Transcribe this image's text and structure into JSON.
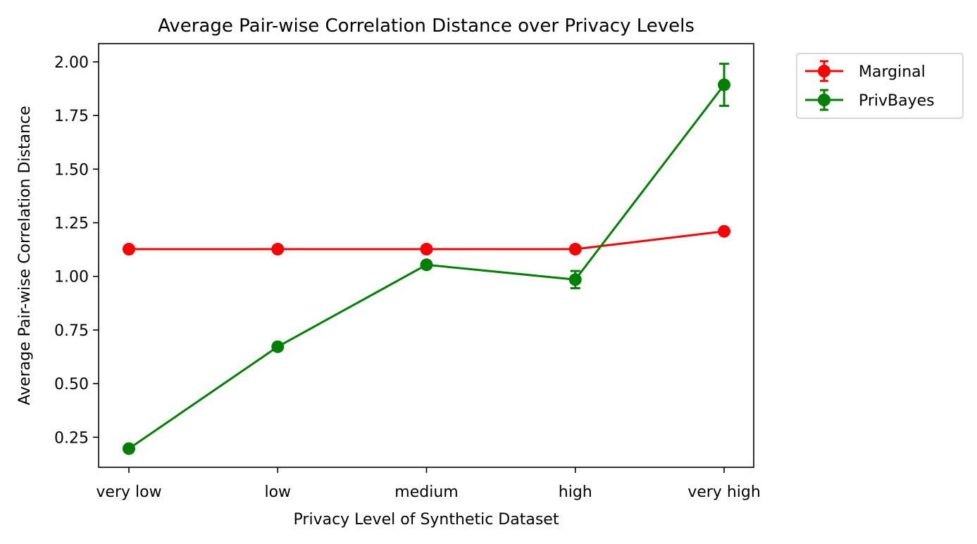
{
  "chart_data": {
    "type": "line",
    "title": "Average Pair-wise Correlation Distance over Privacy Levels",
    "xlabel": "Privacy Level of Synthetic Dataset",
    "ylabel": "Average Pair-wise Correlation Distance",
    "categories": [
      "very low",
      "low",
      "medium",
      "high",
      "very high"
    ],
    "ylim": [
      0.11,
      2.085
    ],
    "yticks": [
      0.25,
      0.5,
      0.75,
      1.0,
      1.25,
      1.5,
      1.75,
      2.0
    ],
    "ytick_labels": [
      "0.25",
      "0.50",
      "0.75",
      "1.00",
      "1.25",
      "1.50",
      "1.75",
      "2.00"
    ],
    "grid": false,
    "legend_position": "outside-top-right",
    "series": [
      {
        "name": "Marginal",
        "color": "#ff0000",
        "values": [
          1.127,
          1.127,
          1.127,
          1.127,
          1.21
        ],
        "errors": [
          0.0,
          0.0,
          0.0,
          0.0,
          0.0
        ]
      },
      {
        "name": "PrivBayes",
        "color": "#008000",
        "values": [
          0.197,
          0.672,
          1.054,
          0.985,
          1.893
        ],
        "errors": [
          0.0,
          0.0,
          0.0,
          0.04,
          0.098
        ]
      }
    ]
  }
}
